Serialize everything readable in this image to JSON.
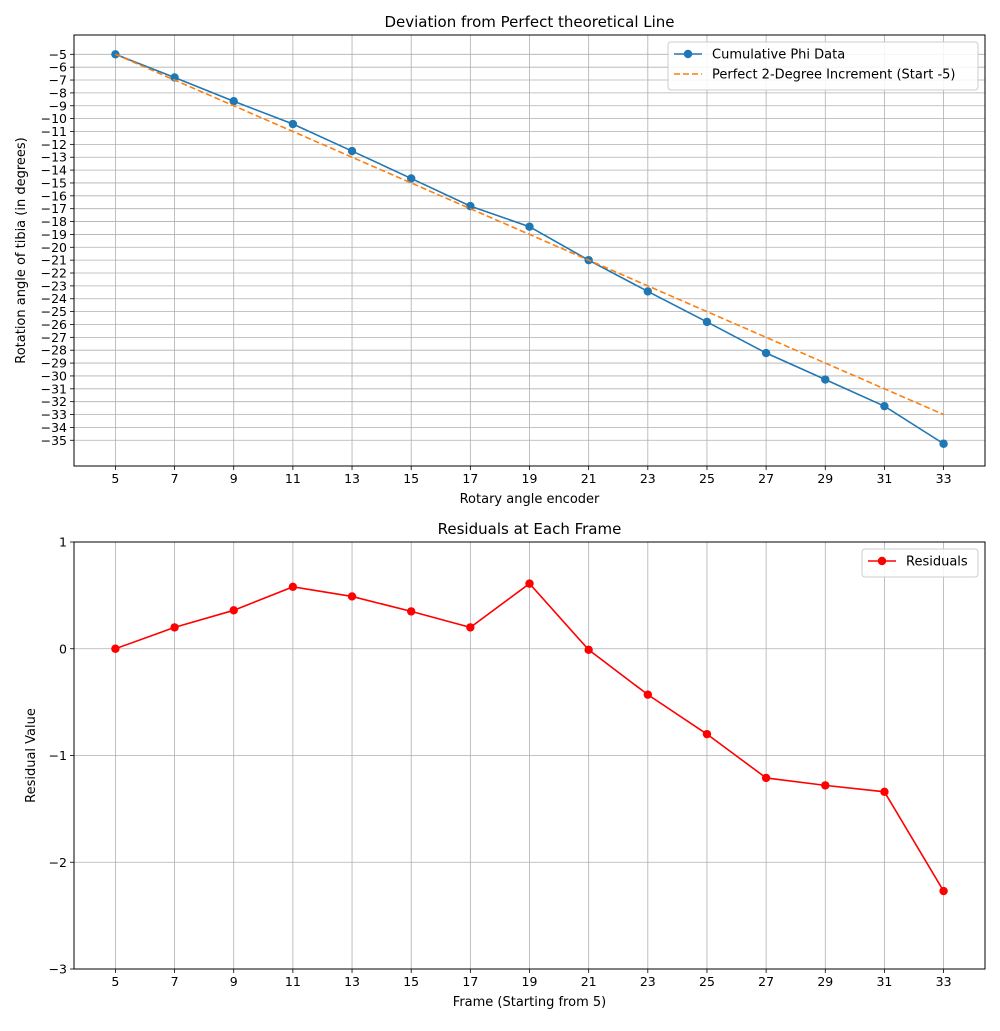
{
  "chart_data": [
    {
      "type": "line",
      "title": "Deviation from Perfect theoretical Line",
      "xlabel": "Rotary angle encoder",
      "ylabel": "Rotation angle of tibia (in degrees)",
      "x": [
        5,
        7,
        9,
        11,
        13,
        15,
        17,
        19,
        21,
        23,
        25,
        27,
        29,
        31,
        33
      ],
      "xlim": [
        3.6,
        34.4
      ],
      "ylim": [
        -37.0,
        -3.5
      ],
      "xticks": [
        5,
        7,
        9,
        11,
        13,
        15,
        17,
        19,
        21,
        23,
        25,
        27,
        29,
        31,
        33
      ],
      "xtick_labels": [
        "5",
        "7",
        "9",
        "11",
        "13",
        "15",
        "17",
        "19",
        "21",
        "23",
        "25",
        "27",
        "29",
        "31",
        "33"
      ],
      "yticks": [
        -5,
        -6,
        -7,
        -8,
        -9,
        -10,
        -11,
        -12,
        -13,
        -14,
        -15,
        -16,
        -17,
        -18,
        -19,
        -20,
        -21,
        -22,
        -23,
        -24,
        -25,
        -26,
        -27,
        -28,
        -29,
        -30,
        -31,
        -32,
        -33,
        -34,
        -35
      ],
      "ytick_labels": [
        "−5",
        "−6",
        "−7",
        "−8",
        "−9",
        "−10",
        "−11",
        "−12",
        "−13",
        "−14",
        "−15",
        "−16",
        "−17",
        "−18",
        "−19",
        "−20",
        "−21",
        "−22",
        "−23",
        "−24",
        "−25",
        "−26",
        "−27",
        "−28",
        "−29",
        "−30",
        "−31",
        "−32",
        "−33",
        "−34",
        "−35"
      ],
      "grid": true,
      "legend_position": "top-right",
      "series": [
        {
          "name": "Cumulative Phi Data",
          "color": "#1f77b4",
          "style": "solid",
          "marker": "circle",
          "values": [
            -5.0,
            -6.8,
            -8.65,
            -10.42,
            -12.52,
            -14.65,
            -16.8,
            -18.4,
            -21.0,
            -23.43,
            -25.8,
            -28.22,
            -30.28,
            -32.35,
            -35.27
          ]
        },
        {
          "name": "Perfect 2-Degree Increment (Start -5)",
          "color": "#ff7f0e",
          "style": "dashed",
          "marker": "none",
          "values": [
            -5,
            -7,
            -9,
            -11,
            -13,
            -15,
            -17,
            -19,
            -21,
            -23,
            -25,
            -27,
            -29,
            -31,
            -33
          ]
        }
      ]
    },
    {
      "type": "line",
      "title": "Residuals at Each Frame",
      "xlabel": "Frame (Starting from 5)",
      "ylabel": "Residual Value",
      "x": [
        5,
        7,
        9,
        11,
        13,
        15,
        17,
        19,
        21,
        23,
        25,
        27,
        29,
        31,
        33
      ],
      "xlim": [
        3.6,
        34.4
      ],
      "ylim": [
        -3,
        1
      ],
      "xticks": [
        5,
        7,
        9,
        11,
        13,
        15,
        17,
        19,
        21,
        23,
        25,
        27,
        29,
        31,
        33
      ],
      "xtick_labels": [
        "5",
        "7",
        "9",
        "11",
        "13",
        "15",
        "17",
        "19",
        "21",
        "23",
        "25",
        "27",
        "29",
        "31",
        "33"
      ],
      "yticks": [
        1,
        0,
        -1,
        -2,
        -3
      ],
      "ytick_labels": [
        "1",
        "0",
        "−1",
        "−2",
        "−3"
      ],
      "grid": true,
      "legend_position": "top-right",
      "series": [
        {
          "name": "Residuals",
          "color": "#ff0000",
          "style": "solid",
          "marker": "circle",
          "values": [
            0.0,
            0.2,
            0.36,
            0.58,
            0.49,
            0.35,
            0.2,
            0.61,
            -0.01,
            -0.43,
            -0.8,
            -1.21,
            -1.28,
            -1.34,
            -2.27
          ]
        }
      ]
    }
  ]
}
